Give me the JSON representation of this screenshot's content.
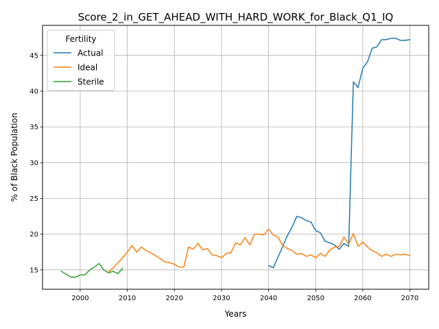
{
  "chart_data": {
    "type": "line",
    "title": "Score_2_in_GET_AHEAD_WITH_HARD_WORK_for_Black_Q1_IQ",
    "xlabel": "Years",
    "ylabel": "% of Black Population",
    "xlim": [
      1992,
      2074
    ],
    "ylim": [
      12.3,
      49.2
    ],
    "xticks": [
      2000,
      2010,
      2020,
      2030,
      2040,
      2050,
      2060,
      2070
    ],
    "yticks": [
      15,
      20,
      25,
      30,
      35,
      40,
      45
    ],
    "grid": true,
    "legend": {
      "title": "Fertility",
      "placement": "upper-left"
    },
    "series": [
      {
        "name": "Actual",
        "color": "#1f77b4",
        "x": [
          2040,
          2041,
          2042,
          2043,
          2044,
          2045,
          2046,
          2047,
          2048,
          2049,
          2050,
          2051,
          2052,
          2053,
          2054,
          2055,
          2056,
          2057,
          2058,
          2059,
          2060,
          2061,
          2062,
          2063,
          2064,
          2065,
          2066,
          2067,
          2068,
          2069,
          2070
        ],
        "y": [
          15.6,
          15.3,
          16.8,
          18.3,
          19.8,
          21.0,
          22.5,
          22.3,
          21.9,
          21.7,
          20.5,
          20.2,
          19.0,
          18.8,
          18.5,
          17.9,
          18.7,
          18.3,
          41.3,
          40.5,
          43.2,
          44.1,
          46.0,
          46.2,
          47.2,
          47.2,
          47.4,
          47.4,
          47.1,
          47.1,
          47.2
        ]
      },
      {
        "name": "Ideal",
        "color": "#ff7f0e",
        "x": [
          2006,
          2007,
          2008,
          2009,
          2010,
          2011,
          2012,
          2013,
          2014,
          2015,
          2016,
          2017,
          2018,
          2019,
          2020,
          2021,
          2022,
          2023,
          2024,
          2025,
          2026,
          2027,
          2028,
          2029,
          2030,
          2031,
          2032,
          2033,
          2034,
          2035,
          2036,
          2037,
          2038,
          2039,
          2040,
          2041,
          2042,
          2043,
          2044,
          2045,
          2046,
          2047,
          2048,
          2049,
          2050,
          2051,
          2052,
          2053,
          2054,
          2055,
          2056,
          2057,
          2058,
          2059,
          2060,
          2061,
          2062,
          2063,
          2064,
          2065,
          2066,
          2067,
          2068,
          2069,
          2070
        ],
        "y": [
          14.7,
          15.3,
          16.0,
          16.7,
          17.5,
          18.4,
          17.5,
          18.2,
          17.7,
          17.4,
          17.0,
          16.6,
          16.1,
          16.0,
          15.8,
          15.4,
          15.4,
          18.2,
          17.9,
          18.7,
          17.8,
          18.0,
          17.1,
          17.0,
          16.7,
          17.3,
          17.4,
          18.8,
          18.5,
          19.5,
          18.5,
          20.0,
          20.0,
          19.9,
          20.7,
          19.9,
          19.6,
          18.4,
          18.0,
          17.7,
          17.2,
          17.3,
          16.9,
          17.1,
          16.7,
          17.3,
          16.9,
          17.8,
          18.2,
          18.3,
          19.6,
          18.6,
          20.1,
          18.3,
          18.9,
          18.2,
          17.7,
          17.4,
          16.9,
          17.2,
          16.9,
          17.2,
          17.1,
          17.2,
          17.0
        ]
      },
      {
        "name": "Sterile",
        "color": "#2ca02c",
        "x": [
          1996,
          1997,
          1998,
          1999,
          2000,
          2001,
          2002,
          2003,
          2004,
          2005,
          2006,
          2007,
          2008,
          2009
        ],
        "y": [
          14.8,
          14.4,
          14.0,
          14.0,
          14.3,
          14.3,
          15.0,
          15.4,
          15.9,
          15.0,
          14.6,
          14.8,
          14.5,
          15.2
        ]
      }
    ]
  }
}
